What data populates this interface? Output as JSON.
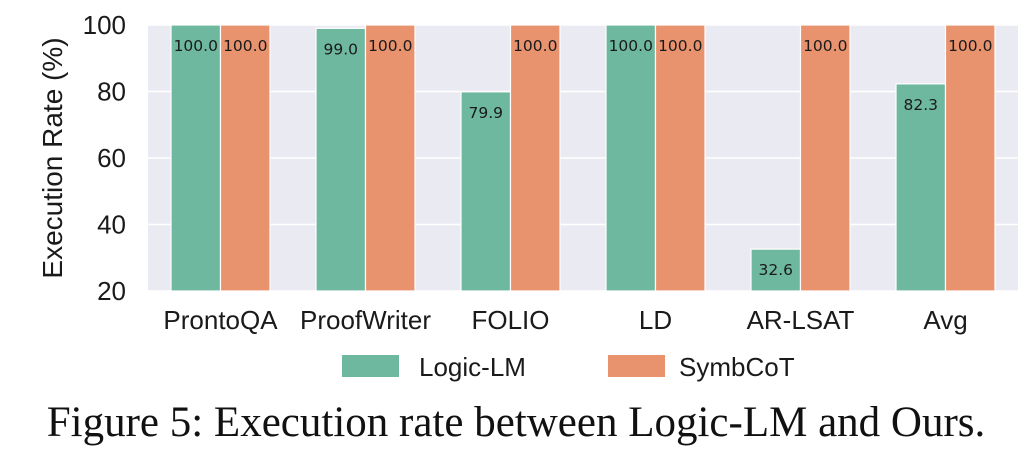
{
  "caption": "Figure 5: Execution rate between Logic-LM and Ours.",
  "chart_data": {
    "type": "bar",
    "ylabel": "Execution Rate (%)",
    "xlabel": "",
    "ylim": [
      20,
      100
    ],
    "yticks": [
      20,
      40,
      60,
      80,
      100
    ],
    "grid": true,
    "legend_position": "bottom",
    "categories": [
      "ProntoQA",
      "ProofWriter",
      "FOLIO",
      "LD",
      "AR-LSAT",
      "Avg"
    ],
    "series": [
      {
        "name": "Logic-LM",
        "color": "#6fb8a0",
        "values": [
          100.0,
          99.0,
          79.9,
          100.0,
          32.6,
          82.3
        ],
        "labels": [
          "100.0",
          "99.0",
          "79.9",
          "100.0",
          "32.6",
          "82.3"
        ]
      },
      {
        "name": "SymbCoT",
        "color": "#e9926e",
        "values": [
          100.0,
          100.0,
          100.0,
          100.0,
          100.0,
          100.0
        ],
        "labels": [
          "100.0",
          "100.0",
          "100.0",
          "100.0",
          "100.0",
          "100.0"
        ]
      }
    ]
  }
}
